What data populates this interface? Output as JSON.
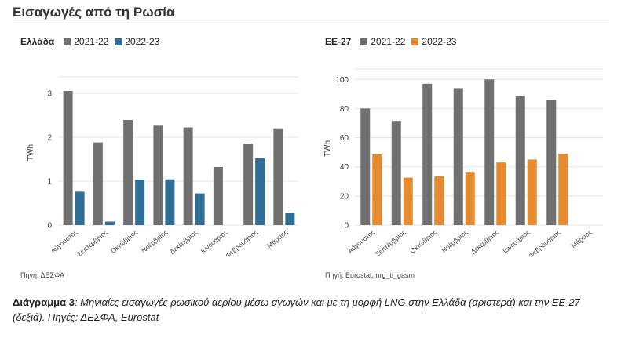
{
  "page": {
    "title": "Εισαγωγές από τη Ρωσία",
    "caption_lead": "Διάγραμμα 3",
    "caption_text": ": Μηνιαίες εισαγωγές ρωσικού αερίου μέσω αγωγών και με τη μορφή LNG στην Ελλάδα (αριστερά) και την ΕΕ-27 (δεξιά). Πηγές: ΔΕΣΦΑ, Eurostat"
  },
  "chart_data": [
    {
      "type": "bar",
      "region": "Ελλάδα",
      "ylabel": "TWh",
      "ylim": [
        0,
        3.3
      ],
      "yticks": [
        0,
        1,
        2,
        3
      ],
      "categories": [
        "Αύγουστος",
        "Σεπτέμβριος",
        "Οκτώβριος",
        "Νοέμβριος",
        "Δεκέμβριος",
        "Ιανουάριος",
        "Φεβρουάριος",
        "Μάρτιος"
      ],
      "series": [
        {
          "name": "2021-22",
          "color": "#707070",
          "values": [
            3.05,
            1.88,
            2.39,
            2.26,
            2.22,
            1.32,
            1.85,
            2.2
          ]
        },
        {
          "name": "2022-23",
          "color": "#2f6f96",
          "values": [
            0.76,
            0.08,
            1.03,
            1.04,
            0.72,
            0,
            1.52,
            0.28
          ]
        }
      ],
      "source": "Πηγή: ΔΕΣΦΑ",
      "grid": true,
      "legend": "top-left"
    },
    {
      "type": "bar",
      "region": "ΕΕ-27",
      "ylabel": "TWh",
      "ylim": [
        0,
        105
      ],
      "yticks": [
        0,
        20,
        40,
        60,
        80,
        100
      ],
      "categories": [
        "Αύγουστος",
        "Σεπτέμβριος",
        "Οκτώβριος",
        "Νοέμβριος",
        "Δεκέμβριος",
        "Ιανουάριος",
        "Φεβρουάριος",
        "Μάρτιος"
      ],
      "series": [
        {
          "name": "2021-22",
          "color": "#707070",
          "values": [
            80,
            71.5,
            97,
            94,
            100,
            88.5,
            86,
            null
          ]
        },
        {
          "name": "2022-23",
          "color": "#e58a2e",
          "values": [
            48.5,
            32.5,
            33.5,
            36.5,
            43,
            45,
            49,
            null
          ]
        }
      ],
      "source": "Πηγή: Eurostat, nrg_ti_gasm",
      "grid": true,
      "legend": "top-left"
    }
  ]
}
